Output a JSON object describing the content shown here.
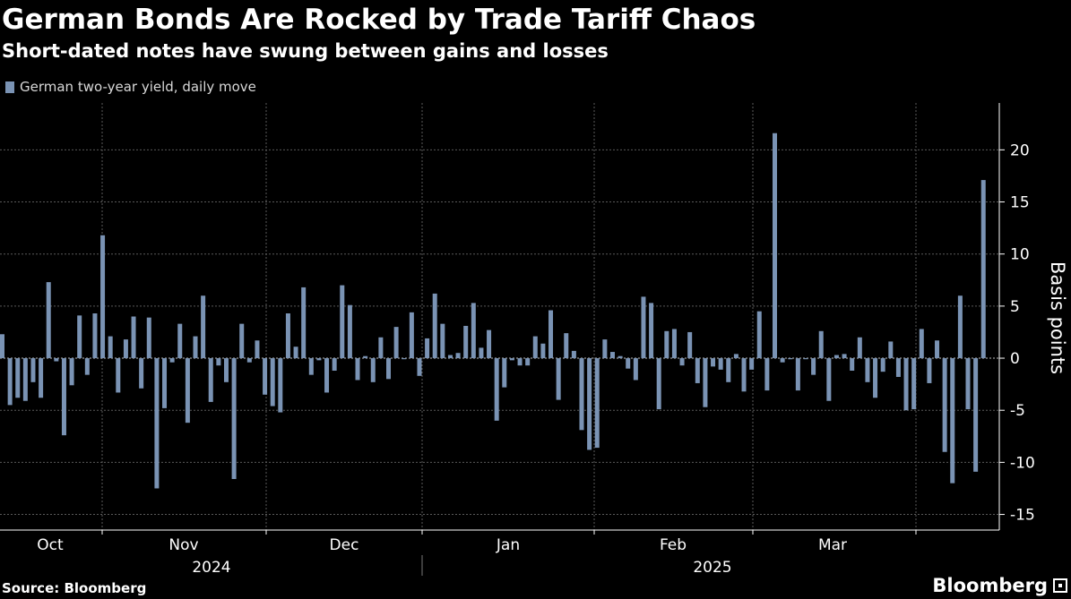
{
  "title": "German Bonds Are Rocked by Trade Tariff Chaos",
  "subtitle": "Short-dated notes have swung between gains and losses",
  "source": "Source: Bloomberg",
  "brand": "Bloomberg",
  "brand_icon": "bloomberg-terminal-icon",
  "chart_data": {
    "type": "bar",
    "series": [
      {
        "name": "German two-year yield, daily move",
        "color": "#7a93b4",
        "values": [
          2.3,
          -4.5,
          -3.8,
          -4.1,
          -2.3,
          -3.8,
          7.3,
          -0.3,
          -7.4,
          -2.6,
          4.1,
          -1.6,
          4.3,
          11.8,
          2.1,
          -3.3,
          1.8,
          4,
          -2.9,
          3.9,
          -12.5,
          -4.8,
          -0.4,
          3.3,
          -6.2,
          2.1,
          6,
          -4.2,
          -0.7,
          -2.3,
          -11.6,
          3.3,
          -0.4,
          1.7,
          -3.5,
          -4.6,
          -5.2,
          4.3,
          1.1,
          6.8,
          -1.6,
          -0.2,
          -3.3,
          -1.2,
          7,
          5.1,
          -2.1,
          0.2,
          -2.3,
          2,
          -2,
          3,
          -0.1,
          4.4,
          -1.7,
          1.9,
          6.2,
          3.3,
          0.3,
          0.5,
          3.1,
          5.3,
          1,
          2.7,
          -6,
          -2.8,
          -0.2,
          -0.7,
          -0.7,
          2.1,
          1.4,
          4.6,
          -4,
          2.4,
          0.7,
          -6.9,
          -8.8,
          -8.6,
          1.8,
          0.6,
          0.2,
          -1,
          -2.1,
          5.9,
          5.3,
          -4.9,
          2.6,
          2.8,
          -0.7,
          2.5,
          -2.4,
          -4.7,
          -0.8,
          -1.1,
          -2.3,
          0.4,
          -3.2,
          -1.1,
          4.5,
          -3.1,
          21.6,
          -0.4,
          -0.1,
          -3.1,
          -0.1,
          -1.6,
          2.6,
          -4.1,
          0.3,
          0.4,
          -1.2,
          2,
          -2.3,
          -3.8,
          -1.3,
          1.6,
          -1.8,
          -5,
          -4.9,
          2.8,
          -2.4,
          1.7,
          -9,
          -12,
          6,
          -4.9,
          -10.9,
          17.1
        ]
      }
    ],
    "x_month_labels": [
      "Oct",
      "Nov",
      "Dec",
      "Jan",
      "Feb",
      "Mar"
    ],
    "x_year_labels": [
      "2024",
      "2025"
    ],
    "ylabel": "Basis points",
    "y_ticks": [
      20,
      15,
      10,
      5,
      0,
      -5,
      -10,
      -15
    ],
    "ylim": [
      -16.5,
      24.5
    ],
    "grid": true,
    "legend_position": "top-left",
    "background": "#000000",
    "grid_color": "#5a5a5a"
  }
}
